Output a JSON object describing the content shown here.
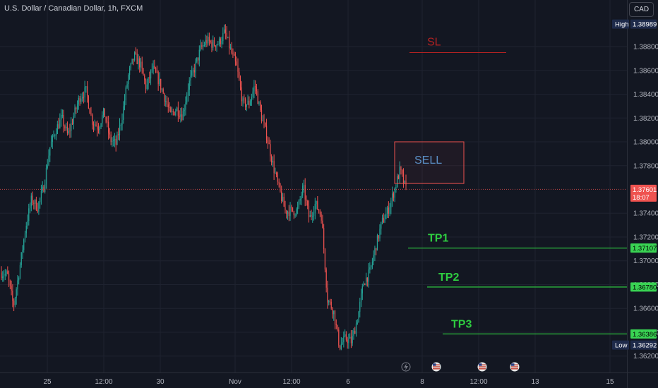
{
  "header": {
    "symbol_title": "U.S. Dollar / Canadian Dollar, 1h, FXCM",
    "currency_button": "CAD"
  },
  "colors": {
    "background": "#131722",
    "up": "#26a69a",
    "down": "#ef5350",
    "tp": "#2ecc40",
    "sl": "#b22222",
    "sell_text": "#5b8fc6"
  },
  "chart_data": {
    "type": "candlestick",
    "ylim": [
      1.3605,
      1.3915
    ],
    "y_ticks": [
      1.362,
      1.364,
      1.366,
      1.368,
      1.37,
      1.372,
      1.374,
      1.378,
      1.38,
      1.382,
      1.384,
      1.386,
      1.388
    ],
    "y_tick_labels": [
      "1.36200",
      "1.36400",
      "1.36600",
      "1.36800",
      "1.37000",
      "1.37200",
      "1.37400",
      "1.37800",
      "1.38000",
      "1.38200",
      "1.38400",
      "1.38600",
      "1.38800"
    ],
    "x_tick_labels": [
      "25",
      "12:00",
      "30",
      "Nov",
      "12:00",
      "6",
      "8",
      "12:00",
      "13",
      "15"
    ],
    "price_labels": {
      "high": {
        "label": "High",
        "value": "1.38989"
      },
      "current": {
        "value": "1.37601",
        "countdown": "18:07"
      },
      "tp1": {
        "value": "1.37107"
      },
      "tp2": {
        "value": "1.36780"
      },
      "tp3": {
        "value": "1.36386"
      },
      "low": {
        "label": "Low",
        "value": "1.36292"
      }
    },
    "annotations": {
      "sl": {
        "text": "SL",
        "price": 1.3875
      },
      "sell": {
        "text": "SELL",
        "top": 1.38,
        "bottom": 1.3765
      },
      "tp1": {
        "text": "TP1",
        "price": 1.37107
      },
      "tp2": {
        "text": "TP2",
        "price": 1.3678
      },
      "tp3": {
        "text": "TP3",
        "price": 1.36386
      }
    },
    "price_path": [
      1.369,
      1.3688,
      1.3662,
      1.3693,
      1.3728,
      1.3752,
      1.3745,
      1.3762,
      1.3795,
      1.381,
      1.382,
      1.3805,
      1.3822,
      1.3838,
      1.3843,
      1.3818,
      1.3812,
      1.3825,
      1.3802,
      1.3798,
      1.3822,
      1.3855,
      1.3872,
      1.3865,
      1.3845,
      1.3862,
      1.3852,
      1.3838,
      1.3822,
      1.3828,
      1.3822,
      1.3848,
      1.3862,
      1.3878,
      1.3885,
      1.3882,
      1.3883,
      1.3892,
      1.3876,
      1.3862,
      1.3832,
      1.3832,
      1.3848,
      1.3822,
      1.3804,
      1.378,
      1.376,
      1.3742,
      1.3742,
      1.3742,
      1.3762,
      1.3735,
      1.3748,
      1.3738,
      1.3668,
      1.3658,
      1.3628,
      1.3635,
      1.3632,
      1.3652,
      1.3682,
      1.369,
      1.3712,
      1.3732,
      1.3742,
      1.3758,
      1.3776,
      1.376
    ]
  }
}
